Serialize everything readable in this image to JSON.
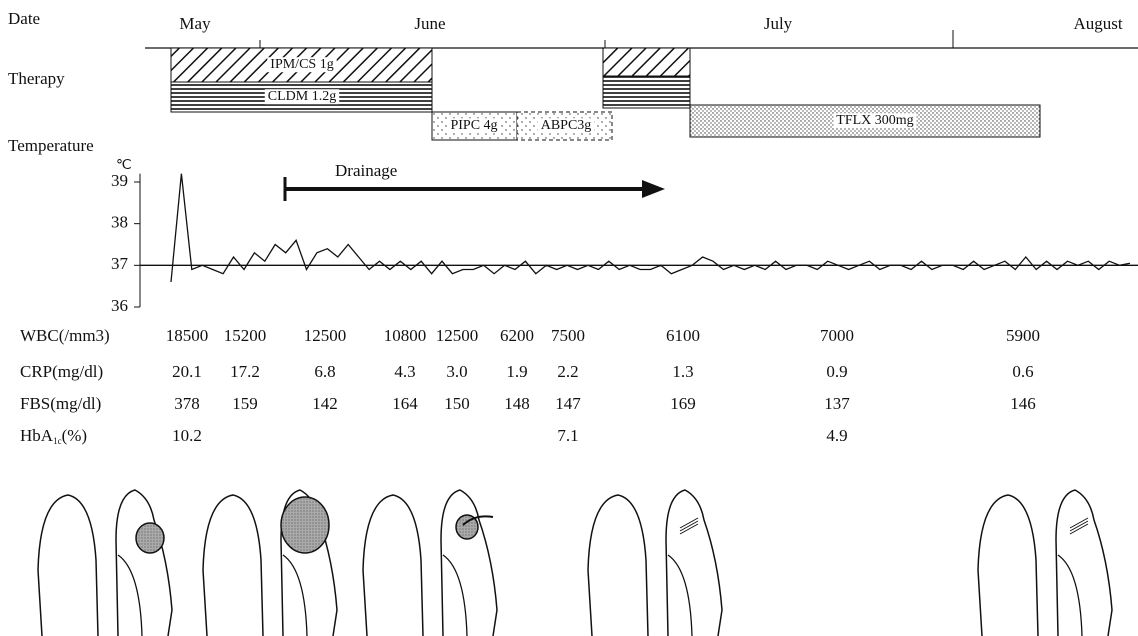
{
  "dates": {
    "label": "Date",
    "months": [
      "May",
      "June",
      "July",
      "August"
    ]
  },
  "therapy": {
    "label": "Therapy",
    "drugs": [
      "IPM/CS 1g",
      "CLDM 1.2g",
      "PIPC 4g",
      "ABPC3g",
      "TFLX 300mg"
    ]
  },
  "chart_data": {
    "type": "line",
    "title": "Temperature",
    "unit": "℃",
    "annotation": "Drainage",
    "ylim": [
      36,
      39.2
    ],
    "yticks": [
      36,
      37,
      38,
      39
    ],
    "color": "#111",
    "values": [
      36.6,
      39.2,
      36.9,
      37.0,
      36.9,
      36.8,
      37.2,
      36.9,
      37.3,
      37.1,
      37.5,
      37.3,
      37.6,
      36.9,
      37.3,
      37.4,
      37.2,
      37.5,
      37.2,
      36.9,
      37.1,
      36.9,
      37.1,
      36.9,
      37.1,
      36.8,
      37.1,
      36.8,
      36.9,
      36.9,
      37.0,
      36.8,
      37.0,
      36.9,
      37.1,
      36.8,
      37.0,
      36.9,
      37.0,
      36.9,
      37.0,
      36.9,
      37.1,
      36.9,
      37.0,
      36.9,
      36.9,
      37.0,
      36.8,
      36.9,
      37.0,
      37.2,
      37.1,
      36.9,
      37.0,
      36.9,
      37.0,
      36.9,
      37.1,
      36.9,
      37.0,
      37.0,
      36.9,
      37.1,
      37.0,
      36.9,
      37.0,
      37.1,
      36.9,
      37.0,
      37.0,
      36.9,
      37.1,
      36.9,
      37.0,
      37.0,
      36.9,
      37.1,
      36.9,
      37.0,
      37.1,
      36.9,
      37.2,
      36.9,
      37.1,
      36.9,
      37.1,
      37.0,
      37.1,
      36.9,
      37.1,
      37.0,
      37.05
    ]
  },
  "labs": {
    "rows": [
      {
        "label": "WBC(/mm3)",
        "values": [
          "18500",
          "15200",
          "12500",
          "10800",
          "12500",
          "6200",
          "7500",
          "6100",
          "7000",
          "5900"
        ]
      },
      {
        "label": "CRP(mg/dl)",
        "values": [
          "20.1",
          "17.2",
          "6.8",
          "4.3",
          "3.0",
          "1.9",
          "2.2",
          "1.3",
          "0.9",
          "0.6"
        ]
      },
      {
        "label": "FBS(mg/dl)",
        "values": [
          "378",
          "159",
          "142",
          "164",
          "150",
          "148",
          "147",
          "169",
          "137",
          "146"
        ]
      },
      {
        "label": {
          "main": "HbA",
          "sub": "1c",
          "suffix": "(%)"
        },
        "values": [
          "10.2",
          null,
          null,
          null,
          null,
          null,
          "7.1",
          null,
          "4.9",
          null
        ]
      }
    ]
  }
}
